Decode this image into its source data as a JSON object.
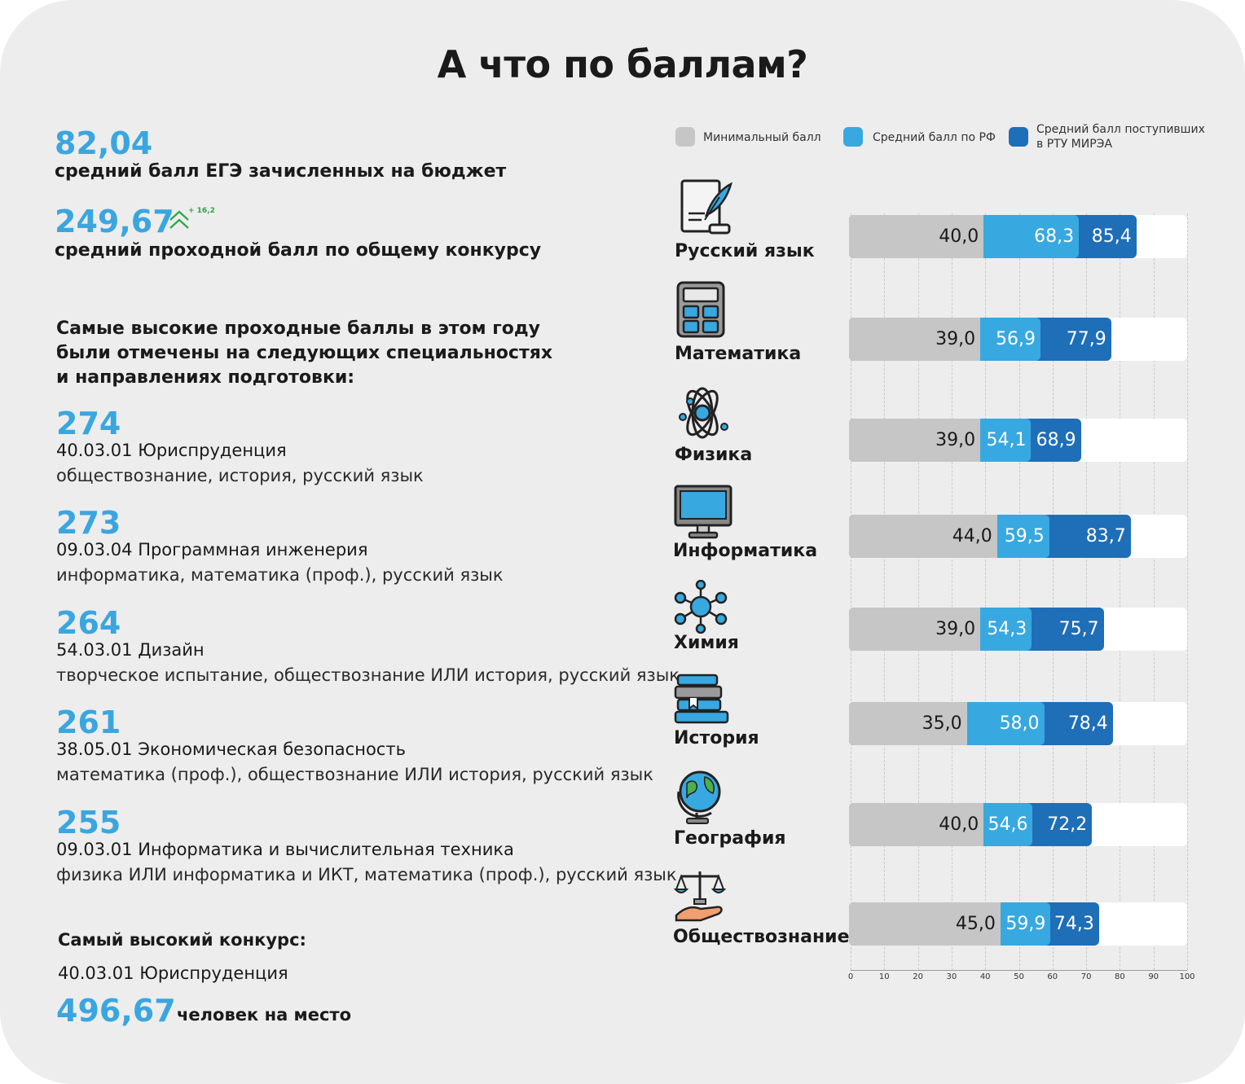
{
  "title": "А что по баллам?",
  "stats": {
    "avg_budget_value": "82,04",
    "avg_budget_label": "средний балл ЕГЭ зачисленных на бюджет",
    "avg_pass_value": "249,67",
    "avg_pass_delta": "+ 16,2",
    "avg_pass_label": "средний проходной балл по общему конкурсу"
  },
  "top_intro": "Самые высокие проходные баллы в этом году были отмечены на следующих специальностях и направлениях подготовки:",
  "top_intro_lines": [
    "Самые высокие проходные баллы в этом году",
    "были отмечены на следующих специальностях",
    "и направлениях подготовки:"
  ],
  "specialties": [
    {
      "score": "274",
      "name": "40.03.01 Юриспруденция",
      "subjects": "обществознание, история, русский язык"
    },
    {
      "score": "273",
      "name": "09.03.04 Программная инженерия",
      "subjects": "информатика, математика (проф.), русский язык"
    },
    {
      "score": "264",
      "name": "54.03.01 Дизайн",
      "subjects": "творческое испытание, обществознание ИЛИ история, русский язык"
    },
    {
      "score": "261",
      "name": "38.05.01 Экономическая безопасность",
      "subjects": "математика (проф.), обществознание ИЛИ история, русский язык"
    },
    {
      "score": "255",
      "name": "09.03.01 Информатика и вычислительная техника",
      "subjects": "физика ИЛИ информатика и ИКТ, математика (проф.), русский язык"
    }
  ],
  "competition": {
    "heading": "Самый высокий конкурс:",
    "name": "40.03.01 Юриспруденция",
    "value": "496,67",
    "unit": "человек на место"
  },
  "colors": {
    "min": "#c6c6c6",
    "avg_rf": "#38a8e0",
    "avg_mirea": "#1f6eb8",
    "accent": "#3aa6e0",
    "delta": "#27a844"
  },
  "chart_data": {
    "type": "bar",
    "orientation": "horizontal",
    "layout": "overlapping (each bar extends from 0 to its value)",
    "categories": [
      "Русский язык",
      "Математика",
      "Физика",
      "Информатика",
      "Химия",
      "История",
      "География",
      "Обществознание"
    ],
    "icons": [
      "quill-scroll-icon",
      "calculator-icon",
      "atom-icon",
      "monitor-icon",
      "molecule-icon",
      "books-icon",
      "globe-icon",
      "scales-hand-icon"
    ],
    "series": [
      {
        "name": "Минимальный балл",
        "values": [
          40.0,
          39.0,
          39.0,
          44.0,
          39.0,
          35.0,
          40.0,
          45.0
        ],
        "labels": [
          "40,0",
          "39,0",
          "39,0",
          "44,0",
          "39,0",
          "35,0",
          "40,0",
          "45,0"
        ]
      },
      {
        "name": "Средний балл по РФ",
        "values": [
          68.3,
          56.9,
          54.1,
          59.5,
          54.3,
          58.0,
          54.6,
          59.9
        ],
        "labels": [
          "68,3",
          "56,9",
          "54,1",
          "59,5",
          "54,3",
          "58,0",
          "54,6",
          "59,9"
        ]
      },
      {
        "name": "Средний балл поступивших в РТУ МИРЭА",
        "values": [
          85.4,
          77.9,
          68.9,
          83.7,
          75.7,
          78.4,
          72.2,
          74.3
        ],
        "labels": [
          "85,4",
          "77,9",
          "68,9",
          "83,7",
          "75,7",
          "78,4",
          "72,2",
          "74,3"
        ]
      }
    ],
    "legend_lines": [
      [
        "Минимальный балл"
      ],
      [
        "Средний балл по РФ"
      ],
      [
        "Средний балл поступивших",
        "в РТУ МИРЭА"
      ]
    ],
    "x_ticks": [
      "0",
      "10",
      "20",
      "30",
      "40",
      "50",
      "60",
      "70",
      "80",
      "90",
      "100"
    ],
    "xlim": [
      0,
      100
    ],
    "legend_position": "top",
    "grid": true
  }
}
